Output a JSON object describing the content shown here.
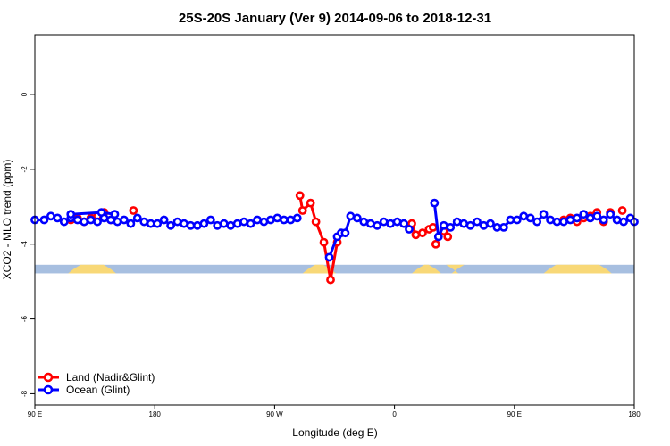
{
  "chart_data": {
    "type": "line",
    "title": "25S-20S January (Ver 9)   2014-09-06 to 2018-12-31",
    "xlabel": "Longitude (deg E)",
    "ylabel": "XCO2 - MLO trend (ppm)",
    "xlim": [
      90,
      540
    ],
    "ylim": [
      -8.3,
      1.6
    ],
    "xticks": [
      {
        "value": 90,
        "label": "90 E"
      },
      {
        "value": 180,
        "label": "180"
      },
      {
        "value": 270,
        "label": "90 W"
      },
      {
        "value": 360,
        "label": "0"
      },
      {
        "value": 450,
        "label": "90 E"
      },
      {
        "value": 540,
        "label": "180"
      }
    ],
    "yticks": [
      {
        "value": 0,
        "label": "0"
      },
      {
        "value": -2,
        "label": "-2"
      },
      {
        "value": -4,
        "label": "-4"
      },
      {
        "value": -6,
        "label": "-6"
      },
      {
        "value": -8,
        "label": "-8"
      }
    ],
    "land_mask": {
      "y_top": -4.55,
      "y_bottom": -4.78,
      "ocean_color": "#a7bfe0",
      "land_color": "#f8d877",
      "land_ranges": [
        [
          115,
          151
        ],
        [
          291,
          316
        ],
        [
          373,
          395
        ],
        [
          403,
          408
        ],
        [
          472,
          523
        ]
      ]
    },
    "series": [
      {
        "name": "Land (Nadir&Glint)",
        "color": "#ff0000",
        "segments": [
          {
            "x": [
              117,
              122,
              127,
              132,
              137,
              142
            ],
            "y": [
              -3.35,
              -3.3,
              -3.4,
              -3.3,
              -3.25,
              -3.15
            ]
          },
          {
            "x": [
              147
            ],
            "y": [
              -3.35
            ]
          },
          {
            "x": [
              164
            ],
            "y": [
              -3.1
            ]
          },
          {
            "x": [
              289,
              291,
              297,
              301,
              307,
              312,
              317
            ],
            "y": [
              -2.7,
              -3.1,
              -2.9,
              -3.4,
              -3.95,
              -4.95,
              -3.95
            ]
          },
          {
            "x": [
              373,
              376,
              381,
              386,
              389
            ],
            "y": [
              -3.45,
              -3.75,
              -3.7,
              -3.6,
              -3.55
            ]
          },
          {
            "x": [
              391
            ],
            "y": [
              -4.0
            ]
          },
          {
            "x": [
              397,
              400
            ],
            "y": [
              -3.65,
              -3.8
            ]
          },
          {
            "x": [
              487
            ],
            "y": [
              -3.35
            ]
          },
          {
            "x": [
              492,
              497,
              502,
              507,
              512
            ],
            "y": [
              -3.3,
              -3.4,
              -3.3,
              -3.25,
              -3.15
            ]
          },
          {
            "x": [
              517
            ],
            "y": [
              -3.4
            ]
          },
          {
            "x": [
              522
            ],
            "y": [
              -3.15
            ]
          },
          {
            "x": [
              531
            ],
            "y": [
              -3.1
            ]
          }
        ]
      },
      {
        "name": "Ocean (Glint)",
        "color": "#0000ff",
        "segments": [
          {
            "x": [
              90,
              97,
              102,
              107,
              112,
              117,
              122,
              127,
              132,
              137,
              142,
              147,
              152,
              157,
              162,
              167,
              172,
              177,
              182,
              187,
              192,
              197,
              202,
              207,
              212,
              217,
              222,
              227,
              232,
              237,
              242,
              247,
              252,
              257,
              262,
              267,
              272,
              277,
              282,
              287
            ],
            "y": [
              -3.35,
              -3.35,
              -3.25,
              -3.3,
              -3.4,
              -3.3,
              -3.35,
              -3.4,
              -3.35,
              -3.4,
              -3.3,
              -3.35,
              -3.4,
              -3.35,
              -3.45,
              -3.3,
              -3.4,
              -3.45,
              -3.45,
              -3.35,
              -3.5,
              -3.4,
              -3.45,
              -3.5,
              -3.5,
              -3.45,
              -3.35,
              -3.5,
              -3.45,
              -3.5,
              -3.45,
              -3.4,
              -3.45,
              -3.35,
              -3.4,
              -3.35,
              -3.3,
              -3.35,
              -3.35,
              -3.3
            ]
          },
          {
            "x": [
              117,
              140,
              150
            ],
            "y": [
              -3.2,
              -3.15,
              -3.2
            ]
          },
          {
            "x": [
              311,
              317,
              320,
              323,
              327,
              332,
              337,
              342,
              347,
              352,
              357,
              362,
              367,
              371
            ],
            "y": [
              -4.35,
              -3.8,
              -3.7,
              -3.7,
              -3.25,
              -3.3,
              -3.4,
              -3.45,
              -3.5,
              -3.4,
              -3.45,
              -3.4,
              -3.45,
              -3.6
            ]
          },
          {
            "x": [
              390,
              393,
              397,
              402,
              407,
              412,
              417,
              422,
              427,
              432,
              437,
              442,
              447,
              452,
              457,
              462,
              467,
              472,
              477,
              482,
              487,
              492,
              497,
              502,
              507,
              512,
              517,
              522,
              527,
              532,
              537,
              540
            ],
            "y": [
              -2.9,
              -3.8,
              -3.5,
              -3.55,
              -3.4,
              -3.45,
              -3.5,
              -3.4,
              -3.5,
              -3.45,
              -3.55,
              -3.55,
              -3.35,
              -3.35,
              -3.25,
              -3.3,
              -3.4,
              -3.2,
              -3.35,
              -3.4,
              -3.4,
              -3.35,
              -3.3,
              -3.2,
              -3.3,
              -3.25,
              -3.35,
              -3.2,
              -3.35,
              -3.4,
              -3.3,
              -3.4
            ]
          }
        ]
      }
    ],
    "legend_position": "bottom-left"
  }
}
